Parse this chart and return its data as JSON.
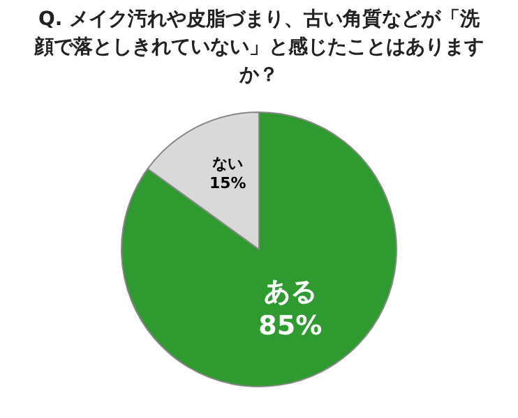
{
  "chart_data": {
    "type": "pie",
    "title": "Q. メイク汚れや皮脂づまり、古い角質などが「洗顔で落としきれていない」と感じたことはありますか？",
    "categories": [
      "ある",
      "ない"
    ],
    "values": [
      85,
      15
    ],
    "colors": [
      "#2f9a30",
      "#d9d9d9"
    ],
    "value_labels": [
      "85%",
      "15%"
    ],
    "legend": false
  }
}
